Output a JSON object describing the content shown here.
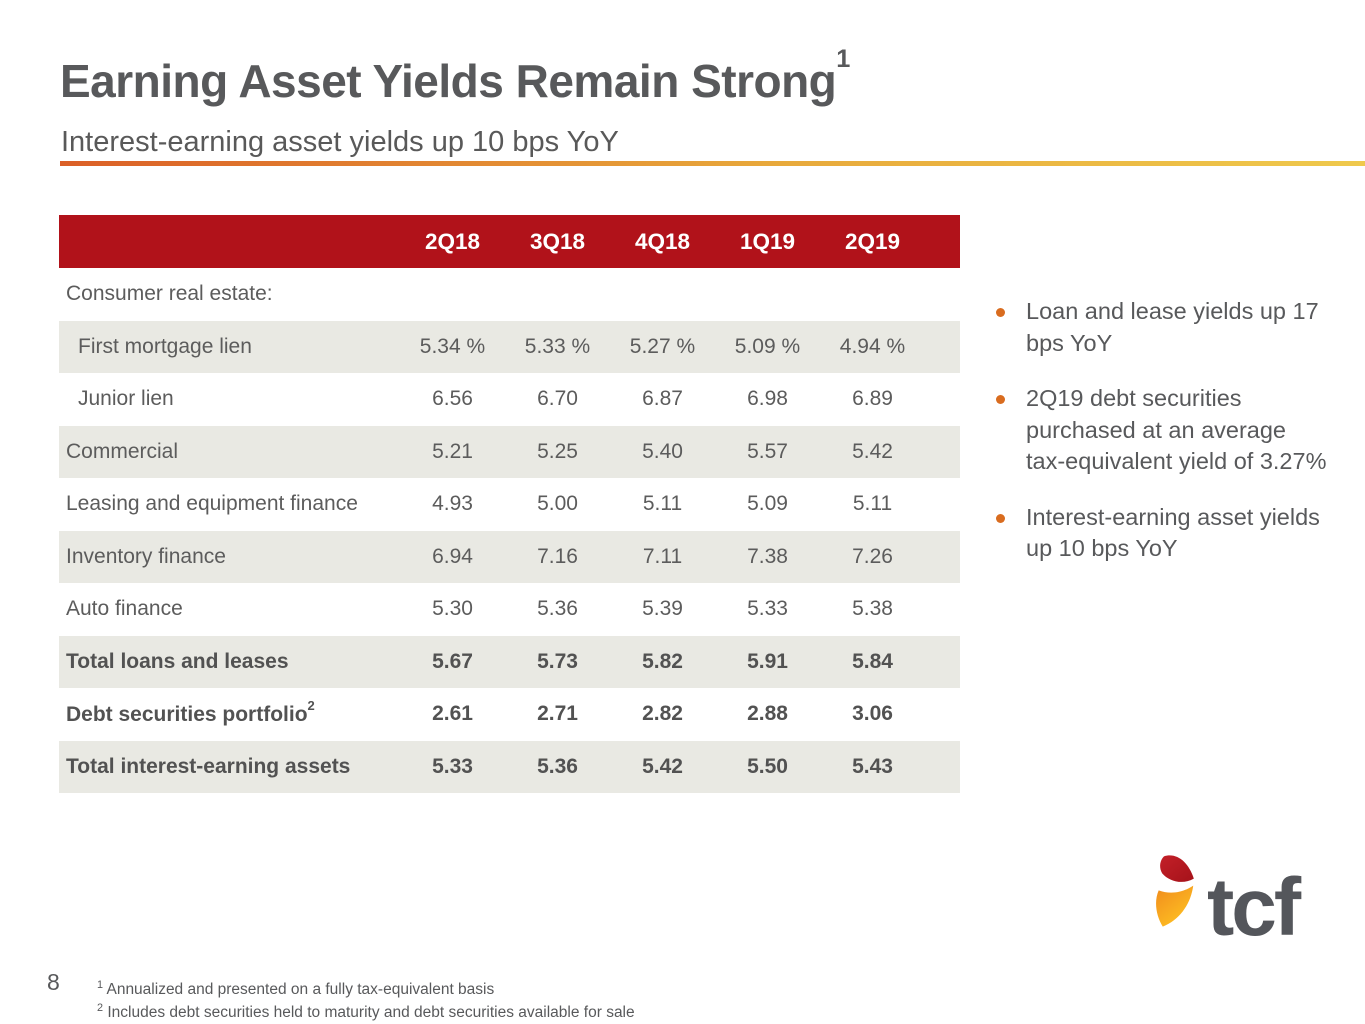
{
  "slide": {
    "title": "Earning Asset Yields Remain Strong",
    "title_superscript": "1",
    "subtitle": "Interest-earning asset yields up 10 bps YoY",
    "page_number": "8"
  },
  "table": {
    "columns": [
      "2Q18",
      "3Q18",
      "4Q18",
      "1Q19",
      "2Q19"
    ],
    "rows": [
      {
        "label": "Consumer real estate:",
        "indent": 0,
        "bold": false,
        "shaded": false,
        "values": [
          "",
          "",
          "",
          "",
          ""
        ]
      },
      {
        "label": "First mortgage lien",
        "indent": 1,
        "bold": false,
        "shaded": true,
        "values": [
          "5.34 %",
          "5.33 %",
          "5.27 %",
          "5.09 %",
          "4.94 %"
        ]
      },
      {
        "label": "Junior lien",
        "indent": 1,
        "bold": false,
        "shaded": false,
        "values": [
          "6.56",
          "6.70",
          "6.87",
          "6.98",
          "6.89"
        ]
      },
      {
        "label": "Commercial",
        "indent": 0,
        "bold": false,
        "shaded": true,
        "values": [
          "5.21",
          "5.25",
          "5.40",
          "5.57",
          "5.42"
        ]
      },
      {
        "label": "Leasing and equipment finance",
        "indent": 0,
        "bold": false,
        "shaded": false,
        "values": [
          "4.93",
          "5.00",
          "5.11",
          "5.09",
          "5.11"
        ]
      },
      {
        "label": "Inventory finance",
        "indent": 0,
        "bold": false,
        "shaded": true,
        "values": [
          "6.94",
          "7.16",
          "7.11",
          "7.38",
          "7.26"
        ]
      },
      {
        "label": "Auto finance",
        "indent": 0,
        "bold": false,
        "shaded": false,
        "values": [
          "5.30",
          "5.36",
          "5.39",
          "5.33",
          "5.38"
        ]
      },
      {
        "label": "Total loans and leases",
        "indent": 0,
        "bold": true,
        "shaded": true,
        "values": [
          "5.67",
          "5.73",
          "5.82",
          "5.91",
          "5.84"
        ]
      },
      {
        "label": "Debt securities portfolio",
        "label_superscript": "2",
        "indent": 0,
        "bold": true,
        "shaded": false,
        "values": [
          "2.61",
          "2.71",
          "2.82",
          "2.88",
          "3.06"
        ]
      },
      {
        "label": "Total interest-earning assets",
        "indent": 0,
        "bold": true,
        "shaded": true,
        "values": [
          "5.33",
          "5.36",
          "5.42",
          "5.50",
          "5.43"
        ]
      }
    ]
  },
  "bullets": [
    "Loan and lease yields up 17 bps YoY",
    "2Q19 debt securities purchased at an average tax-equivalent yield of 3.27%",
    "Interest-earning asset yields up 10 bps YoY"
  ],
  "footnotes": [
    {
      "marker": "1",
      "text": "Annualized and presented on a fully tax-equivalent basis"
    },
    {
      "marker": "2",
      "text": "Includes debt securities held to maturity and debt securities available for sale"
    }
  ],
  "logo": {
    "text": "tcf"
  },
  "colors": {
    "header_bar": "#B1121A",
    "row_shade": "#E9E9E3",
    "accent_line_left": "#DB5F27",
    "accent_line_right": "#EFC94C",
    "bullet_dot": "#D96C1F",
    "body_text": "#595959",
    "logo_red": "#C32028",
    "logo_orange": "#F08B1D",
    "logo_yellow": "#FFC222",
    "logo_text": "#54565B"
  }
}
